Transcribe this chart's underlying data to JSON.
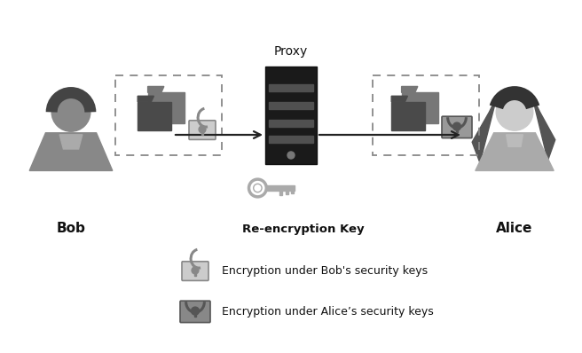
{
  "bg_color": "#ffffff",
  "title": "Proxy",
  "bob_label": "Bob",
  "alice_label": "Alice",
  "key_label": "Re-encryption Key",
  "legend1": "Encryption under Bob's security keys",
  "legend2": "Encryption under Alice’s security keys",
  "arrow_color": "#222222",
  "dashed_box_color": "#888888",
  "figure_width": 6.56,
  "figure_height": 3.98,
  "dpi": 100
}
